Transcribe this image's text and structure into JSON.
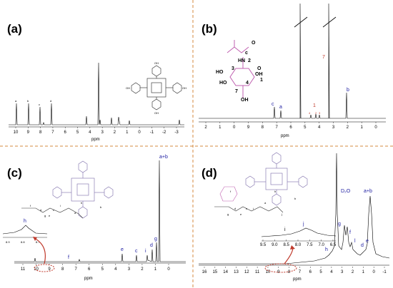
{
  "panels": [
    {
      "id": "a",
      "label": "(a)",
      "xunit": "ppm",
      "ticks": [
        "10",
        "9",
        "8",
        "7",
        "6",
        "5",
        "4",
        "3",
        "2",
        "1",
        "0",
        "-1",
        "-2",
        "-3"
      ],
      "peak_labels": [
        "a",
        "b",
        "c",
        "d"
      ],
      "structure_labels": [
        "OH",
        "OH",
        "OH",
        "OH"
      ]
    },
    {
      "id": "b",
      "label": "(b)",
      "xunit": "ppm",
      "ticks": [
        "2",
        "1",
        "0",
        "9",
        "8",
        "7",
        "6",
        "5",
        "4",
        "3",
        "2",
        "1",
        "0"
      ],
      "peak_labels": [
        "c",
        "a",
        "1",
        "4",
        "2",
        "3",
        "7",
        "b"
      ],
      "structure_labels": [
        "c",
        "HN",
        "2",
        "3",
        "HO",
        "HO",
        "4",
        "OH",
        "O",
        "1",
        "7",
        "OH",
        "O"
      ]
    },
    {
      "id": "c",
      "label": "(c)",
      "xunit": "ppm",
      "ticks": [
        "11",
        "10",
        "9",
        "8",
        "7",
        "6",
        "5",
        "4",
        "3",
        "2",
        "1",
        "0"
      ],
      "inset_ticks": [
        "8.9",
        "8.8",
        "8.7"
      ],
      "peak_labels": [
        "a+b",
        "h",
        "f",
        "e",
        "c",
        "i",
        "d",
        "g"
      ],
      "structure_labels": [
        "h",
        "i",
        "g",
        "e",
        "d",
        "f",
        "c",
        "a",
        "b"
      ]
    },
    {
      "id": "d",
      "label": "(d)",
      "xunit": "ppm",
      "ticks": [
        "16",
        "15",
        "14",
        "13",
        "12",
        "11",
        "10",
        "9",
        "8",
        "7",
        "6",
        "5",
        "4",
        "3",
        "2",
        "1",
        "0",
        "-1"
      ],
      "inset_ticks": [
        "9.5",
        "9.0",
        "8.5",
        "8.0",
        "7.5",
        "7.0",
        "6.5"
      ],
      "peak_labels": [
        "D₂O",
        "a+b",
        "h",
        "g",
        "f",
        "l",
        "d",
        "e"
      ],
      "inset_labels": [
        "i",
        "j"
      ],
      "structure_labels": [
        "i",
        "j",
        "h",
        "g",
        "f",
        "e",
        "d",
        "c",
        "a",
        "b"
      ]
    }
  ],
  "chart_data": [
    {
      "type": "line",
      "panel": "a",
      "xlabel": "ppm",
      "xlim": [
        10.5,
        -3.5
      ],
      "peaks": [
        {
          "x": 9.8,
          "h": 0.32
        },
        {
          "x": 8.8,
          "h": 0.3
        },
        {
          "x": 8.1,
          "h": 0.27
        },
        {
          "x": 7.1,
          "h": 0.3
        },
        {
          "x": 3.9,
          "h": 0.12
        },
        {
          "x": 3.3,
          "h": 0.95
        },
        {
          "x": 2.2,
          "h": 0.1
        },
        {
          "x": 1.1,
          "h": 0.12
        },
        {
          "x": 0.9,
          "h": 0.06
        },
        {
          "x": -2.8,
          "h": 0.08
        }
      ]
    },
    {
      "type": "line",
      "panel": "b",
      "xlabel": "ppm",
      "xlim": [
        2.2,
        -0.2
      ],
      "peaks": [
        {
          "x": 5.8,
          "h": 0.15
        },
        {
          "x": 5.5,
          "h": 0.12
        },
        {
          "x": 4.7,
          "h": 1.2
        },
        {
          "x": 3.7,
          "h": 0.06
        },
        {
          "x": 3.5,
          "h": 0.05
        },
        {
          "x": 3.3,
          "h": 1.2
        },
        {
          "x": 1.9,
          "h": 0.3
        }
      ]
    },
    {
      "type": "line",
      "panel": "c",
      "xlabel": "ppm",
      "xlim": [
        11.5,
        -0.5
      ],
      "peaks": [
        {
          "x": 8.9,
          "h": 0.08
        },
        {
          "x": 7.2,
          "h": 0.02
        },
        {
          "x": 3.9,
          "h": 0.12
        },
        {
          "x": 2.8,
          "h": 0.08
        },
        {
          "x": 1.8,
          "h": 0.1
        },
        {
          "x": 1.5,
          "h": 0.12
        },
        {
          "x": 1.3,
          "h": 0.18
        },
        {
          "x": 1.2,
          "h": 0.95
        }
      ]
    },
    {
      "type": "line",
      "panel": "d",
      "xlabel": "ppm",
      "xlim": [
        16.5,
        -1.5
      ],
      "peaks": [
        {
          "x": 4.7,
          "h": 1.1
        },
        {
          "x": 3.8,
          "h": 0.3
        },
        {
          "x": 3.6,
          "h": 0.22
        },
        {
          "x": 3.2,
          "h": 0.18
        },
        {
          "x": 2.0,
          "h": 0.06
        },
        {
          "x": 1.6,
          "h": 0.08
        },
        {
          "x": 1.0,
          "h": 0.45
        }
      ]
    }
  ]
}
